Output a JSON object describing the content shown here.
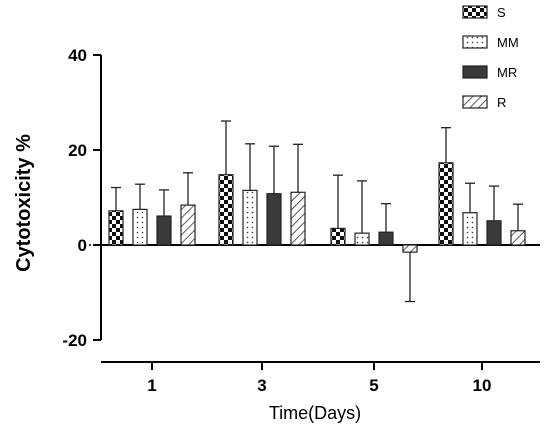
{
  "chart_data": {
    "type": "bar",
    "xlabel": "Time(Days)",
    "ylabel": "Cytotoxicity %",
    "ylim": [
      -20,
      40
    ],
    "yticks": [
      -20,
      0,
      20,
      40
    ],
    "categories": [
      "1",
      "3",
      "5",
      "10"
    ],
    "series": [
      {
        "name": "S",
        "values": [
          7.2,
          14.8,
          3.5,
          17.3
        ],
        "errors": [
          4.9,
          11.3,
          11.2,
          7.4
        ]
      },
      {
        "name": "MM",
        "values": [
          7.5,
          11.5,
          2.5,
          6.8
        ],
        "errors": [
          5.3,
          9.8,
          11.0,
          6.2
        ]
      },
      {
        "name": "MR",
        "values": [
          6.1,
          10.8,
          2.7,
          5.1
        ],
        "errors": [
          5.5,
          10.0,
          6.0,
          7.3
        ]
      },
      {
        "name": "R",
        "values": [
          8.4,
          11.1,
          -1.5,
          3.0
        ],
        "errors": [
          6.8,
          10.1,
          10.4,
          5.6
        ]
      }
    ],
    "legend_position": "top-right",
    "grid": false
  }
}
